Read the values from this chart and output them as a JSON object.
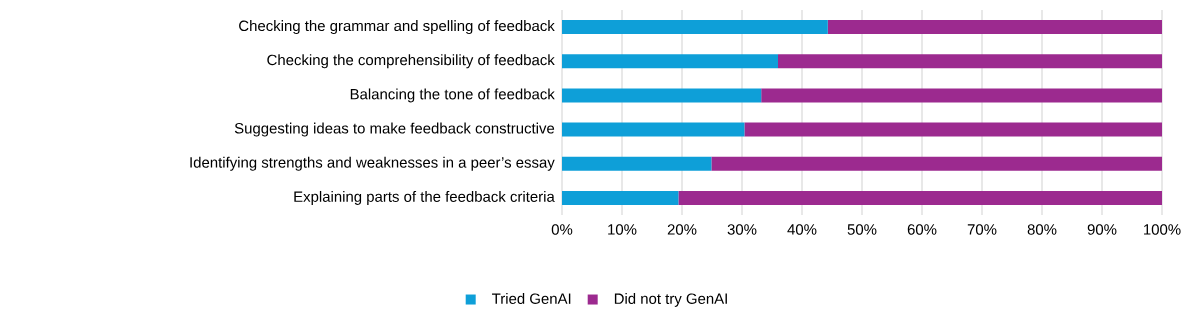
{
  "chart_data": {
    "type": "bar",
    "orientation": "horizontal",
    "stacked": true,
    "categories": [
      "Checking the grammar and spelling of feedback",
      "Checking the comprehensibility of feedback",
      "Balancing the tone of feedback",
      "Suggesting ideas to make feedback constructive",
      "Identifying strengths and weaknesses in a peer’s essay",
      "Explaining parts of the feedback criteria"
    ],
    "series": [
      {
        "name": "Tried GenAI",
        "color": "#0e9fd8",
        "values": [
          44.3,
          36.0,
          33.2,
          30.4,
          24.9,
          19.4
        ]
      },
      {
        "name": "Did not try GenAI",
        "color": "#9c2a8f",
        "values": [
          55.7,
          64.0,
          66.8,
          69.6,
          75.1,
          80.6
        ]
      }
    ],
    "xlim": [
      0,
      100
    ],
    "xticks": [
      {
        "value": 0,
        "label": "0%"
      },
      {
        "value": 10,
        "label": "10%"
      },
      {
        "value": 20,
        "label": "20%"
      },
      {
        "value": 30,
        "label": "30%"
      },
      {
        "value": 40,
        "label": "40%"
      },
      {
        "value": 50,
        "label": "50%"
      },
      {
        "value": 60,
        "label": "60%"
      },
      {
        "value": 70,
        "label": "70%"
      },
      {
        "value": 80,
        "label": "80%"
      },
      {
        "value": 90,
        "label": "90%"
      },
      {
        "value": 100,
        "label": "100%"
      }
    ],
    "grid": "x",
    "legend": "bottom"
  }
}
